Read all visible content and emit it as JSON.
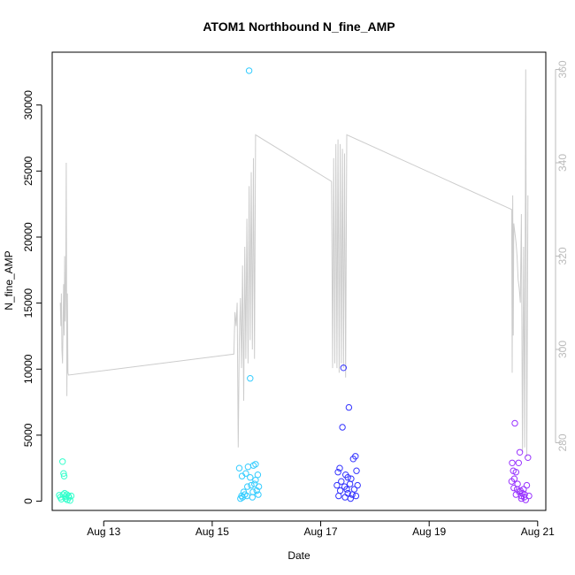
{
  "chart_data": {
    "type": "scatter",
    "title": "ATOM1 Northbound N_fine_AMP",
    "xlabel": "Date",
    "ylabel": "N_fine_AMP",
    "x_ticks": [
      "Aug 13",
      "Aug 15",
      "Aug 17",
      "Aug 19",
      "Aug 21"
    ],
    "x_tick_days": [
      13,
      15,
      17,
      19,
      21
    ],
    "xlim": [
      12.05,
      21.15
    ],
    "y_ticks": [
      0,
      5000,
      10000,
      15000,
      20000,
      25000,
      30000
    ],
    "ylim": [
      -700,
      34000
    ],
    "y2_ticks": [
      280,
      300,
      320,
      340,
      360
    ],
    "y2lim": [
      265.5,
      363.7
    ],
    "line_color": "#cccccc",
    "right_axis_color": "#bbbbbb",
    "series": [
      {
        "color": "#33ffcc",
        "points": [
          [
            12.18,
            450
          ],
          [
            12.2,
            300
          ],
          [
            12.22,
            150
          ],
          [
            12.24,
            3000
          ],
          [
            12.25,
            500
          ],
          [
            12.26,
            2100
          ],
          [
            12.27,
            1900
          ],
          [
            12.28,
            600
          ],
          [
            12.29,
            350
          ],
          [
            12.3,
            200
          ],
          [
            12.32,
            500
          ],
          [
            12.33,
            100
          ],
          [
            12.35,
            400
          ],
          [
            12.36,
            300
          ],
          [
            12.38,
            50
          ],
          [
            12.4,
            400
          ]
        ]
      },
      {
        "color": "#33ccff",
        "points": [
          [
            15.5,
            2500
          ],
          [
            15.52,
            200
          ],
          [
            15.54,
            400
          ],
          [
            15.55,
            1900
          ],
          [
            15.56,
            300
          ],
          [
            15.58,
            700
          ],
          [
            15.6,
            500
          ],
          [
            15.62,
            2100
          ],
          [
            15.64,
            400
          ],
          [
            15.65,
            1100
          ],
          [
            15.66,
            2600
          ],
          [
            15.68,
            32600
          ],
          [
            15.7,
            9300
          ],
          [
            15.7,
            1800
          ],
          [
            15.72,
            1200
          ],
          [
            15.74,
            300
          ],
          [
            15.75,
            700
          ],
          [
            15.76,
            2700
          ],
          [
            15.78,
            1300
          ],
          [
            15.8,
            2800
          ],
          [
            15.8,
            1600
          ],
          [
            15.82,
            800
          ],
          [
            15.84,
            2000
          ],
          [
            15.85,
            500
          ],
          [
            15.86,
            1100
          ]
        ]
      },
      {
        "color": "#3333ff",
        "points": [
          [
            17.3,
            1200
          ],
          [
            17.32,
            2200
          ],
          [
            17.33,
            400
          ],
          [
            17.35,
            2500
          ],
          [
            17.36,
            800
          ],
          [
            17.38,
            1500
          ],
          [
            17.4,
            5600
          ],
          [
            17.42,
            10100
          ],
          [
            17.44,
            1100
          ],
          [
            17.45,
            300
          ],
          [
            17.46,
            2000
          ],
          [
            17.48,
            900
          ],
          [
            17.5,
            1800
          ],
          [
            17.5,
            600
          ],
          [
            17.52,
            7100
          ],
          [
            17.54,
            1300
          ],
          [
            17.55,
            200
          ],
          [
            17.56,
            1700
          ],
          [
            17.58,
            500
          ],
          [
            17.6,
            3200
          ],
          [
            17.62,
            900
          ],
          [
            17.64,
            3400
          ],
          [
            17.65,
            400
          ],
          [
            17.66,
            2300
          ],
          [
            17.68,
            1200
          ]
        ]
      },
      {
        "color": "#9933ff",
        "points": [
          [
            20.52,
            1500
          ],
          [
            20.53,
            2900
          ],
          [
            20.55,
            2300
          ],
          [
            20.56,
            1000
          ],
          [
            20.57,
            1700
          ],
          [
            20.58,
            5900
          ],
          [
            20.6,
            2200
          ],
          [
            20.6,
            500
          ],
          [
            20.62,
            900
          ],
          [
            20.63,
            1300
          ],
          [
            20.65,
            2900
          ],
          [
            20.66,
            700
          ],
          [
            20.67,
            3700
          ],
          [
            20.68,
            800
          ],
          [
            20.7,
            400
          ],
          [
            20.7,
            200
          ],
          [
            20.72,
            600
          ],
          [
            20.74,
            900
          ],
          [
            20.75,
            300
          ],
          [
            20.76,
            500
          ],
          [
            20.78,
            100
          ],
          [
            20.8,
            1200
          ],
          [
            20.82,
            3300
          ],
          [
            20.84,
            400
          ]
        ]
      }
    ],
    "line_series": [
      [
        12.2,
        310
      ],
      [
        12.21,
        305
      ],
      [
        12.22,
        312
      ],
      [
        12.23,
        300
      ],
      [
        12.24,
        297
      ],
      [
        12.26,
        314
      ],
      [
        12.27,
        303
      ],
      [
        12.28,
        320
      ],
      [
        12.29,
        306
      ],
      [
        12.3,
        313
      ],
      [
        12.31,
        340
      ],
      [
        12.32,
        290
      ],
      [
        12.33,
        312
      ],
      [
        12.34,
        295
      ],
      [
        12.35,
        294.5
      ],
      [
        15.4,
        299
      ],
      [
        15.42,
        308
      ],
      [
        15.44,
        305
      ],
      [
        15.46,
        310
      ],
      [
        15.48,
        279
      ],
      [
        15.5,
        302
      ],
      [
        15.52,
        311
      ],
      [
        15.54,
        296
      ],
      [
        15.56,
        318
      ],
      [
        15.58,
        289
      ],
      [
        15.6,
        322
      ],
      [
        15.62,
        298
      ],
      [
        15.64,
        328
      ],
      [
        15.66,
        297
      ],
      [
        15.68,
        335
      ],
      [
        15.7,
        302
      ],
      [
        15.72,
        338
      ],
      [
        15.74,
        300
      ],
      [
        15.76,
        341
      ],
      [
        15.78,
        298
      ],
      [
        15.8,
        346
      ],
      [
        17.2,
        336
      ],
      [
        17.22,
        296
      ],
      [
        17.24,
        341
      ],
      [
        17.26,
        297
      ],
      [
        17.28,
        344
      ],
      [
        17.3,
        296
      ],
      [
        17.32,
        345
      ],
      [
        17.34,
        295
      ],
      [
        17.36,
        344
      ],
      [
        17.38,
        297
      ],
      [
        17.4,
        343
      ],
      [
        17.42,
        296
      ],
      [
        17.44,
        342
      ],
      [
        17.46,
        294
      ],
      [
        17.48,
        346
      ],
      [
        20.52,
        330
      ],
      [
        20.53,
        295
      ],
      [
        20.54,
        333
      ],
      [
        20.55,
        303
      ],
      [
        20.56,
        327
      ],
      [
        20.58,
        325
      ],
      [
        20.6,
        323
      ],
      [
        20.62,
        320
      ],
      [
        20.64,
        315
      ],
      [
        20.66,
        313
      ],
      [
        20.68,
        310
      ],
      [
        20.7,
        329
      ],
      [
        20.72,
        278
      ],
      [
        20.74,
        322
      ],
      [
        20.76,
        279
      ],
      [
        20.78,
        360
      ],
      [
        20.8,
        277
      ],
      [
        20.82,
        333
      ]
    ]
  }
}
